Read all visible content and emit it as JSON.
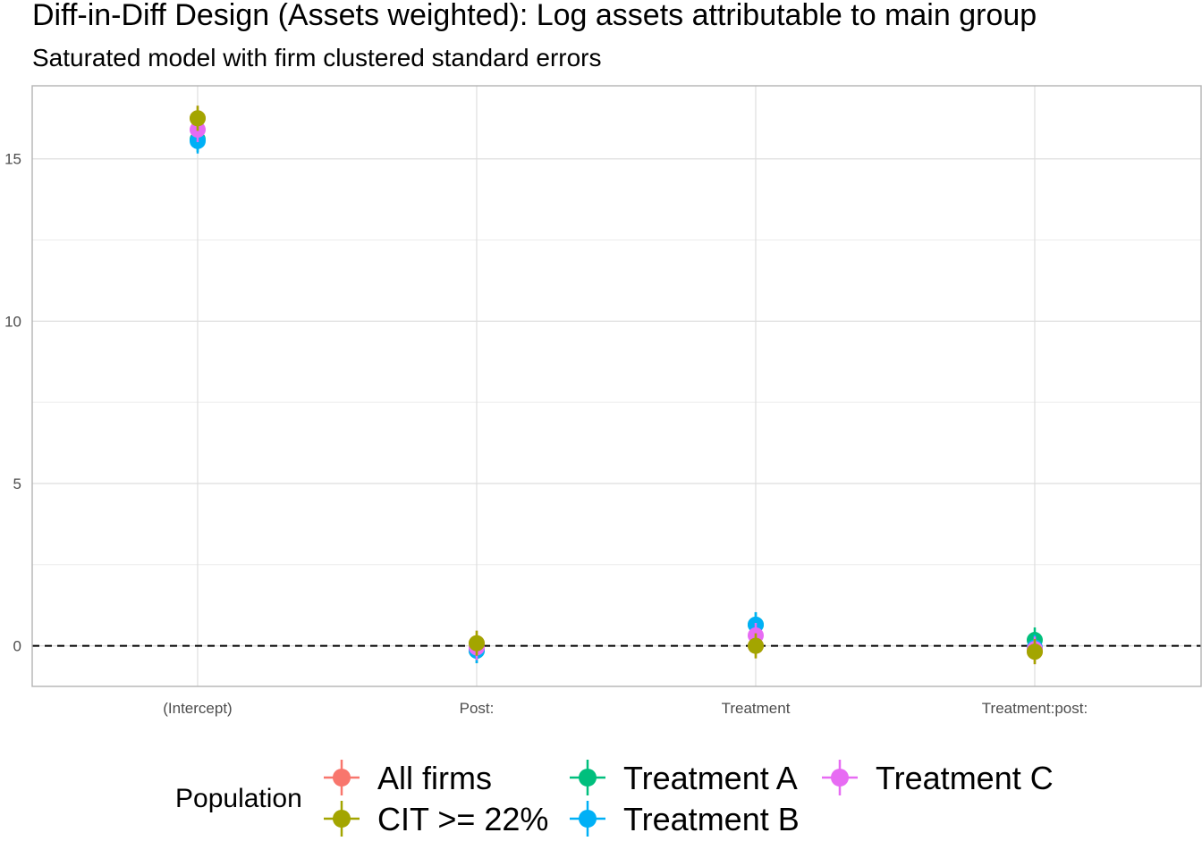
{
  "chart_data": {
    "type": "scatter",
    "title": "Diff-in-Diff Design (Assets weighted): Log assets attributable to main group",
    "subtitle": "Saturated model with firm clustered standard errors",
    "xlabel": "",
    "ylabel": "",
    "categories": [
      "(Intercept)",
      "Post:",
      "Treatment",
      "Treatment:post:"
    ],
    "ylim": [
      -1.25,
      17.25
    ],
    "yticks": [
      0,
      5,
      10,
      15
    ],
    "grid": true,
    "reference_line": 0,
    "legend": {
      "title": "Population",
      "placement": "bottom",
      "entries": [
        "All firms",
        "CIT >= 22%",
        "Treatment A",
        "Treatment B",
        "Treatment C"
      ]
    },
    "series": [
      {
        "name": "All firms",
        "color": "#F8766D",
        "values": [
          16.25,
          0.08,
          0.0,
          -0.18
        ]
      },
      {
        "name": "CIT >= 22%",
        "color": "#A3A500",
        "values": [
          16.25,
          0.08,
          0.0,
          -0.18
        ]
      },
      {
        "name": "Treatment A",
        "color": "#00BF7D",
        "values": [
          15.6,
          -0.15,
          0.65,
          0.18
        ]
      },
      {
        "name": "Treatment B",
        "color": "#00B0F6",
        "values": [
          15.55,
          -0.15,
          0.65,
          -0.05
        ]
      },
      {
        "name": "Treatment C",
        "color": "#E76BF3",
        "values": [
          15.9,
          -0.05,
          0.32,
          -0.1
        ]
      }
    ],
    "draw_order": [
      "Treatment A",
      "Treatment B",
      "Treatment C",
      "All firms",
      "CIT >= 22%"
    ]
  }
}
